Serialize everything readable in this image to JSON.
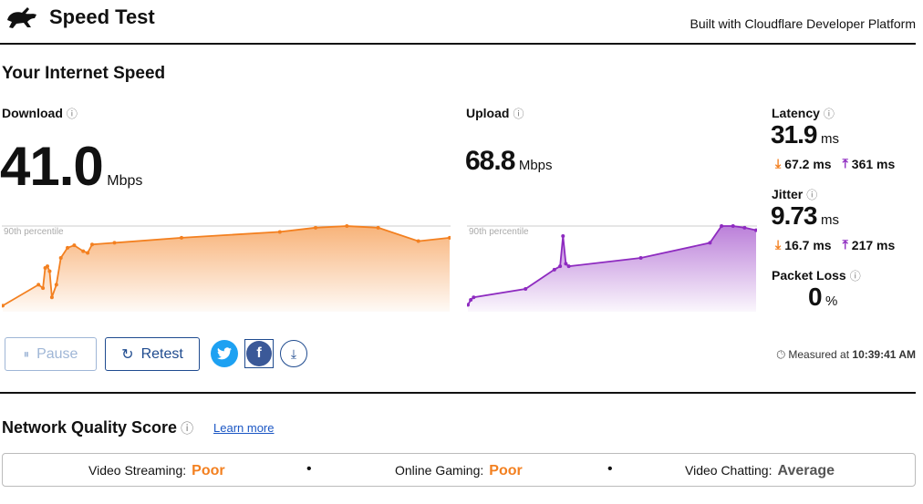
{
  "header": {
    "title": "Speed Test",
    "built_with": "Built with Cloudflare Developer Platform"
  },
  "section_title": "Your Internet Speed",
  "download": {
    "label": "Download",
    "value": "41.0",
    "unit": "Mbps",
    "percentile_label": "90th percentile"
  },
  "upload": {
    "label": "Upload",
    "value": "68.8",
    "unit": "Mbps",
    "percentile_label": "90th percentile"
  },
  "latency": {
    "label": "Latency",
    "value": "31.9",
    "unit": "ms",
    "down": "67.2 ms",
    "up": "361 ms"
  },
  "jitter": {
    "label": "Jitter",
    "value": "9.73",
    "unit": "ms",
    "down": "16.7 ms",
    "up": "217 ms"
  },
  "packet_loss": {
    "label": "Packet Loss",
    "value": "0",
    "unit": "%"
  },
  "actions": {
    "pause_label": "Pause",
    "retest_label": "Retest"
  },
  "measured": {
    "prefix": "Measured at",
    "time": "10:39:41 AM"
  },
  "network_quality": {
    "title": "Network Quality Score",
    "learn_more": "Learn more",
    "items": [
      {
        "label": "Video Streaming:",
        "value": "Poor"
      },
      {
        "label": "Online Gaming:",
        "value": "Poor"
      },
      {
        "label": "Video Chatting:",
        "value": "Average"
      }
    ]
  },
  "colors": {
    "download": "#f38020",
    "upload": "#8e2bc0",
    "accent": "#1f4b8f",
    "twitter": "#1da1f2",
    "facebook": "#3b5998"
  },
  "chart_data": [
    {
      "type": "area",
      "name": "download",
      "x": [
        0,
        0.08,
        0.09,
        0.095,
        0.1,
        0.105,
        0.11,
        0.12,
        0.13,
        0.145,
        0.16,
        0.18,
        0.19,
        0.2,
        0.25,
        0.4,
        0.62,
        0.7,
        0.77,
        0.84,
        0.93,
        1.0
      ],
      "values": [
        0.05,
        0.3,
        0.26,
        0.5,
        0.52,
        0.46,
        0.15,
        0.3,
        0.62,
        0.74,
        0.77,
        0.7,
        0.68,
        0.78,
        0.8,
        0.86,
        0.93,
        0.98,
        1.0,
        0.98,
        0.82,
        0.86
      ]
    },
    {
      "type": "area",
      "name": "upload",
      "x": [
        0,
        0.01,
        0.02,
        0.2,
        0.3,
        0.32,
        0.33,
        0.34,
        0.35,
        0.6,
        0.84,
        0.88,
        0.92,
        0.96,
        1.0
      ],
      "values": [
        0.06,
        0.12,
        0.15,
        0.25,
        0.48,
        0.52,
        0.88,
        0.55,
        0.52,
        0.62,
        0.8,
        1.0,
        1.0,
        0.98,
        0.95
      ]
    }
  ]
}
